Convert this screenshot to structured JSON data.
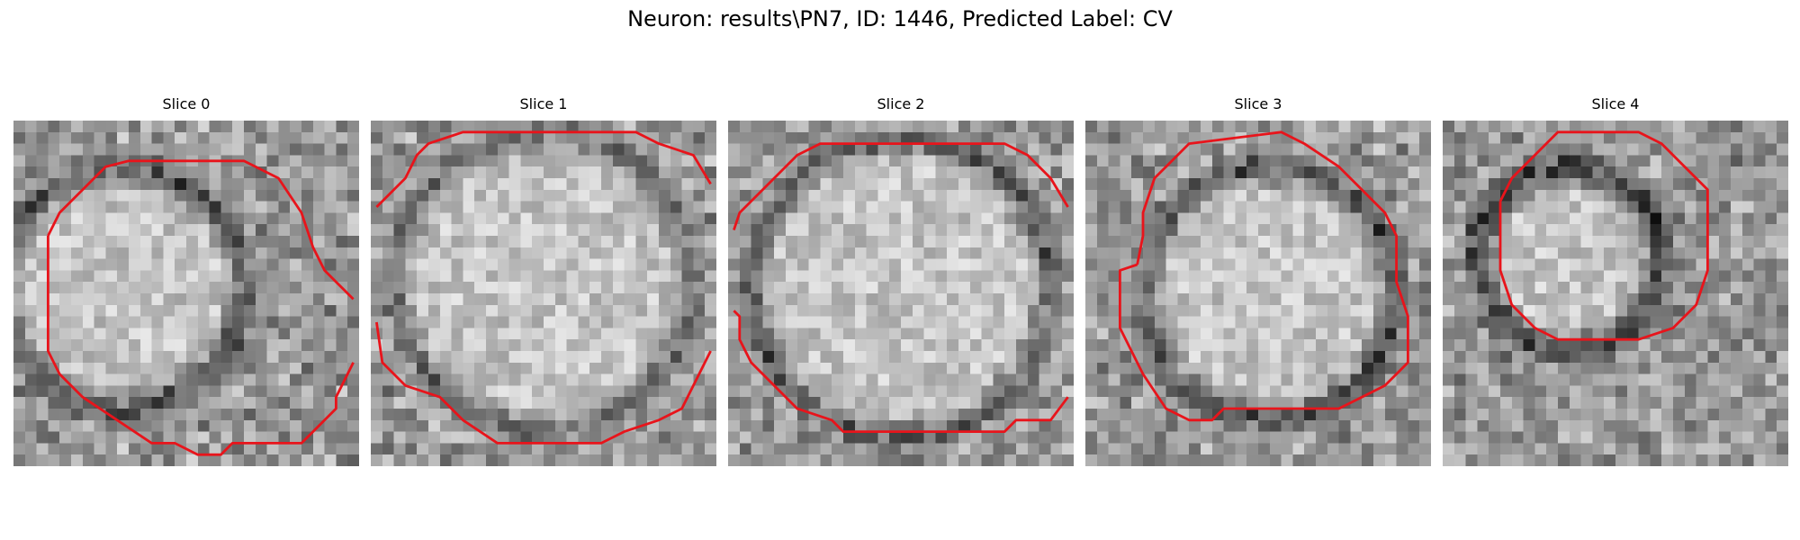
{
  "figure": {
    "suptitle": "Neuron: results\\PN7, ID: 1446, Predicted Label: CV"
  },
  "colors": {
    "background": "#ffffff",
    "contour": "#e8141b",
    "colormap": "gray"
  },
  "panels": [
    {
      "title": "Slice 0",
      "name": "slice-0"
    },
    {
      "title": "Slice 1",
      "name": "slice-1"
    },
    {
      "title": "Slice 2",
      "name": "slice-2"
    },
    {
      "title": "Slice 3",
      "name": "slice-3"
    },
    {
      "title": "Slice 4",
      "name": "slice-4"
    }
  ]
}
